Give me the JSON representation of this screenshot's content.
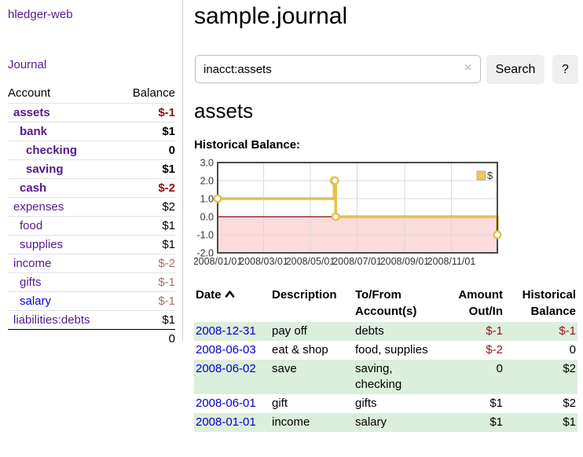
{
  "sidebar": {
    "app_title": "hledger-web",
    "journal_label": "Journal",
    "accounts_table": {
      "headers": {
        "account": "Account",
        "balance": "Balance"
      },
      "rows": [
        {
          "name": "assets",
          "balance": "$-1",
          "depth": 1,
          "bold": true,
          "link": "visited",
          "balance_style": "neg-strong"
        },
        {
          "name": "bank",
          "balance": "$1",
          "depth": 2,
          "bold": true,
          "link": "visited",
          "balance_style": "pos"
        },
        {
          "name": "checking",
          "balance": "0",
          "depth": 3,
          "bold": true,
          "link": "visited",
          "balance_style": "pos"
        },
        {
          "name": "saving",
          "balance": "$1",
          "depth": 3,
          "bold": true,
          "link": "visited",
          "balance_style": "pos"
        },
        {
          "name": "cash",
          "balance": "$-2",
          "depth": 2,
          "bold": true,
          "link": "visited",
          "balance_style": "neg-strong"
        },
        {
          "name": "expenses",
          "balance": "$2",
          "depth": 1,
          "bold": false,
          "link": "visited",
          "balance_style": "pos"
        },
        {
          "name": "food",
          "balance": "$1",
          "depth": 2,
          "bold": false,
          "link": "visited",
          "balance_style": "pos"
        },
        {
          "name": "supplies",
          "balance": "$1",
          "depth": 2,
          "bold": false,
          "link": "visited",
          "balance_style": "pos"
        },
        {
          "name": "income",
          "balance": "$-2",
          "depth": 1,
          "bold": false,
          "link": "visited",
          "balance_style": "neg-soft"
        },
        {
          "name": "gifts",
          "balance": "$-1",
          "depth": 2,
          "bold": false,
          "link": "visited",
          "balance_style": "neg-soft"
        },
        {
          "name": "salary",
          "balance": "$-1",
          "depth": 2,
          "bold": false,
          "link": "unvisited",
          "balance_style": "neg-soft"
        },
        {
          "name": "liabilities:debts",
          "balance": "$1",
          "depth": 1,
          "bold": false,
          "link": "visited",
          "balance_style": "pos"
        }
      ],
      "total": "0"
    }
  },
  "main": {
    "title": "sample.journal",
    "search": {
      "value": "inacct:assets",
      "clear_icon": "×",
      "search_button": "Search",
      "help_button": "?"
    },
    "account_heading": "assets",
    "chart_label": "Historical Balance:",
    "register_table": {
      "headers": {
        "date": "Date",
        "description": "Description",
        "accounts": "To/From Account(s)",
        "amount": "Amount Out/In",
        "balance": "Historical Balance"
      },
      "rows": [
        {
          "date": "2008-12-31",
          "description": "pay off",
          "accounts": "debts",
          "amount": "$-1",
          "amount_neg": true,
          "balance": "$-1",
          "balance_neg": true,
          "stripe": true
        },
        {
          "date": "2008-06-03",
          "description": "eat & shop",
          "accounts": "food, supplies",
          "amount": "$-2",
          "amount_neg": true,
          "balance": "0",
          "balance_neg": false,
          "stripe": false
        },
        {
          "date": "2008-06-02",
          "description": "save",
          "accounts": "saving, checking",
          "amount": "0",
          "amount_neg": false,
          "balance": "$2",
          "balance_neg": false,
          "stripe": true
        },
        {
          "date": "2008-06-01",
          "description": "gift",
          "accounts": "gifts",
          "amount": "$1",
          "amount_neg": false,
          "balance": "$2",
          "balance_neg": false,
          "stripe": false
        },
        {
          "date": "2008-01-01",
          "description": "income",
          "accounts": "salary",
          "amount": "$1",
          "amount_neg": false,
          "balance": "$1",
          "balance_neg": false,
          "stripe": true
        }
      ]
    }
  },
  "chart_data": {
    "type": "line",
    "title": "Historical Balance",
    "step": "before",
    "series": [
      {
        "name": "$",
        "points": [
          {
            "date": "2008-01-01",
            "value": 1
          },
          {
            "date": "2008-06-01",
            "value": 2
          },
          {
            "date": "2008-06-02",
            "value": 2
          },
          {
            "date": "2008-06-03",
            "value": 0
          },
          {
            "date": "2008-12-31",
            "value": -1
          }
        ]
      }
    ],
    "x_range": [
      "2008-01-01",
      "2008-12-31"
    ],
    "ylim": [
      -2,
      3
    ],
    "y_ticks": [
      3,
      2,
      1,
      0,
      -1,
      -2
    ],
    "y_tick_labels": [
      "3.0",
      "2.0",
      "1.0",
      "0.0",
      "-1.0",
      "-2.0"
    ],
    "x_tick_dates": [
      "2008-01-01",
      "2008-03-01",
      "2008-05-01",
      "2008-07-01",
      "2008-09-01",
      "2008-11-01"
    ],
    "x_tick_labels": [
      "2008/01/01",
      "2008/03/01",
      "2008/05/01",
      "2008/07/01",
      "2008/09/01",
      "2008/11/01"
    ],
    "legend": {
      "label": "$",
      "position": "top-right"
    },
    "grid": true,
    "negative_region_shaded": true
  },
  "colors": {
    "line": "#E5C04A",
    "marker_fill": "#FFFFFF",
    "legend_square": "#EBC85A",
    "legend_border": "#B0B0B0",
    "negative_region": "#FBDBDB",
    "zero_line": "#8B0000",
    "grid": "#D9D9D9",
    "plot_border": "#4A4A4A",
    "axis_text": "#333333",
    "stripe_green": "#DCEEDC",
    "link_purple": "#551A8B",
    "link_blue": "#0000EE",
    "negative_strong": "#9A0B0B",
    "negative_soft": "#B26A6A"
  }
}
